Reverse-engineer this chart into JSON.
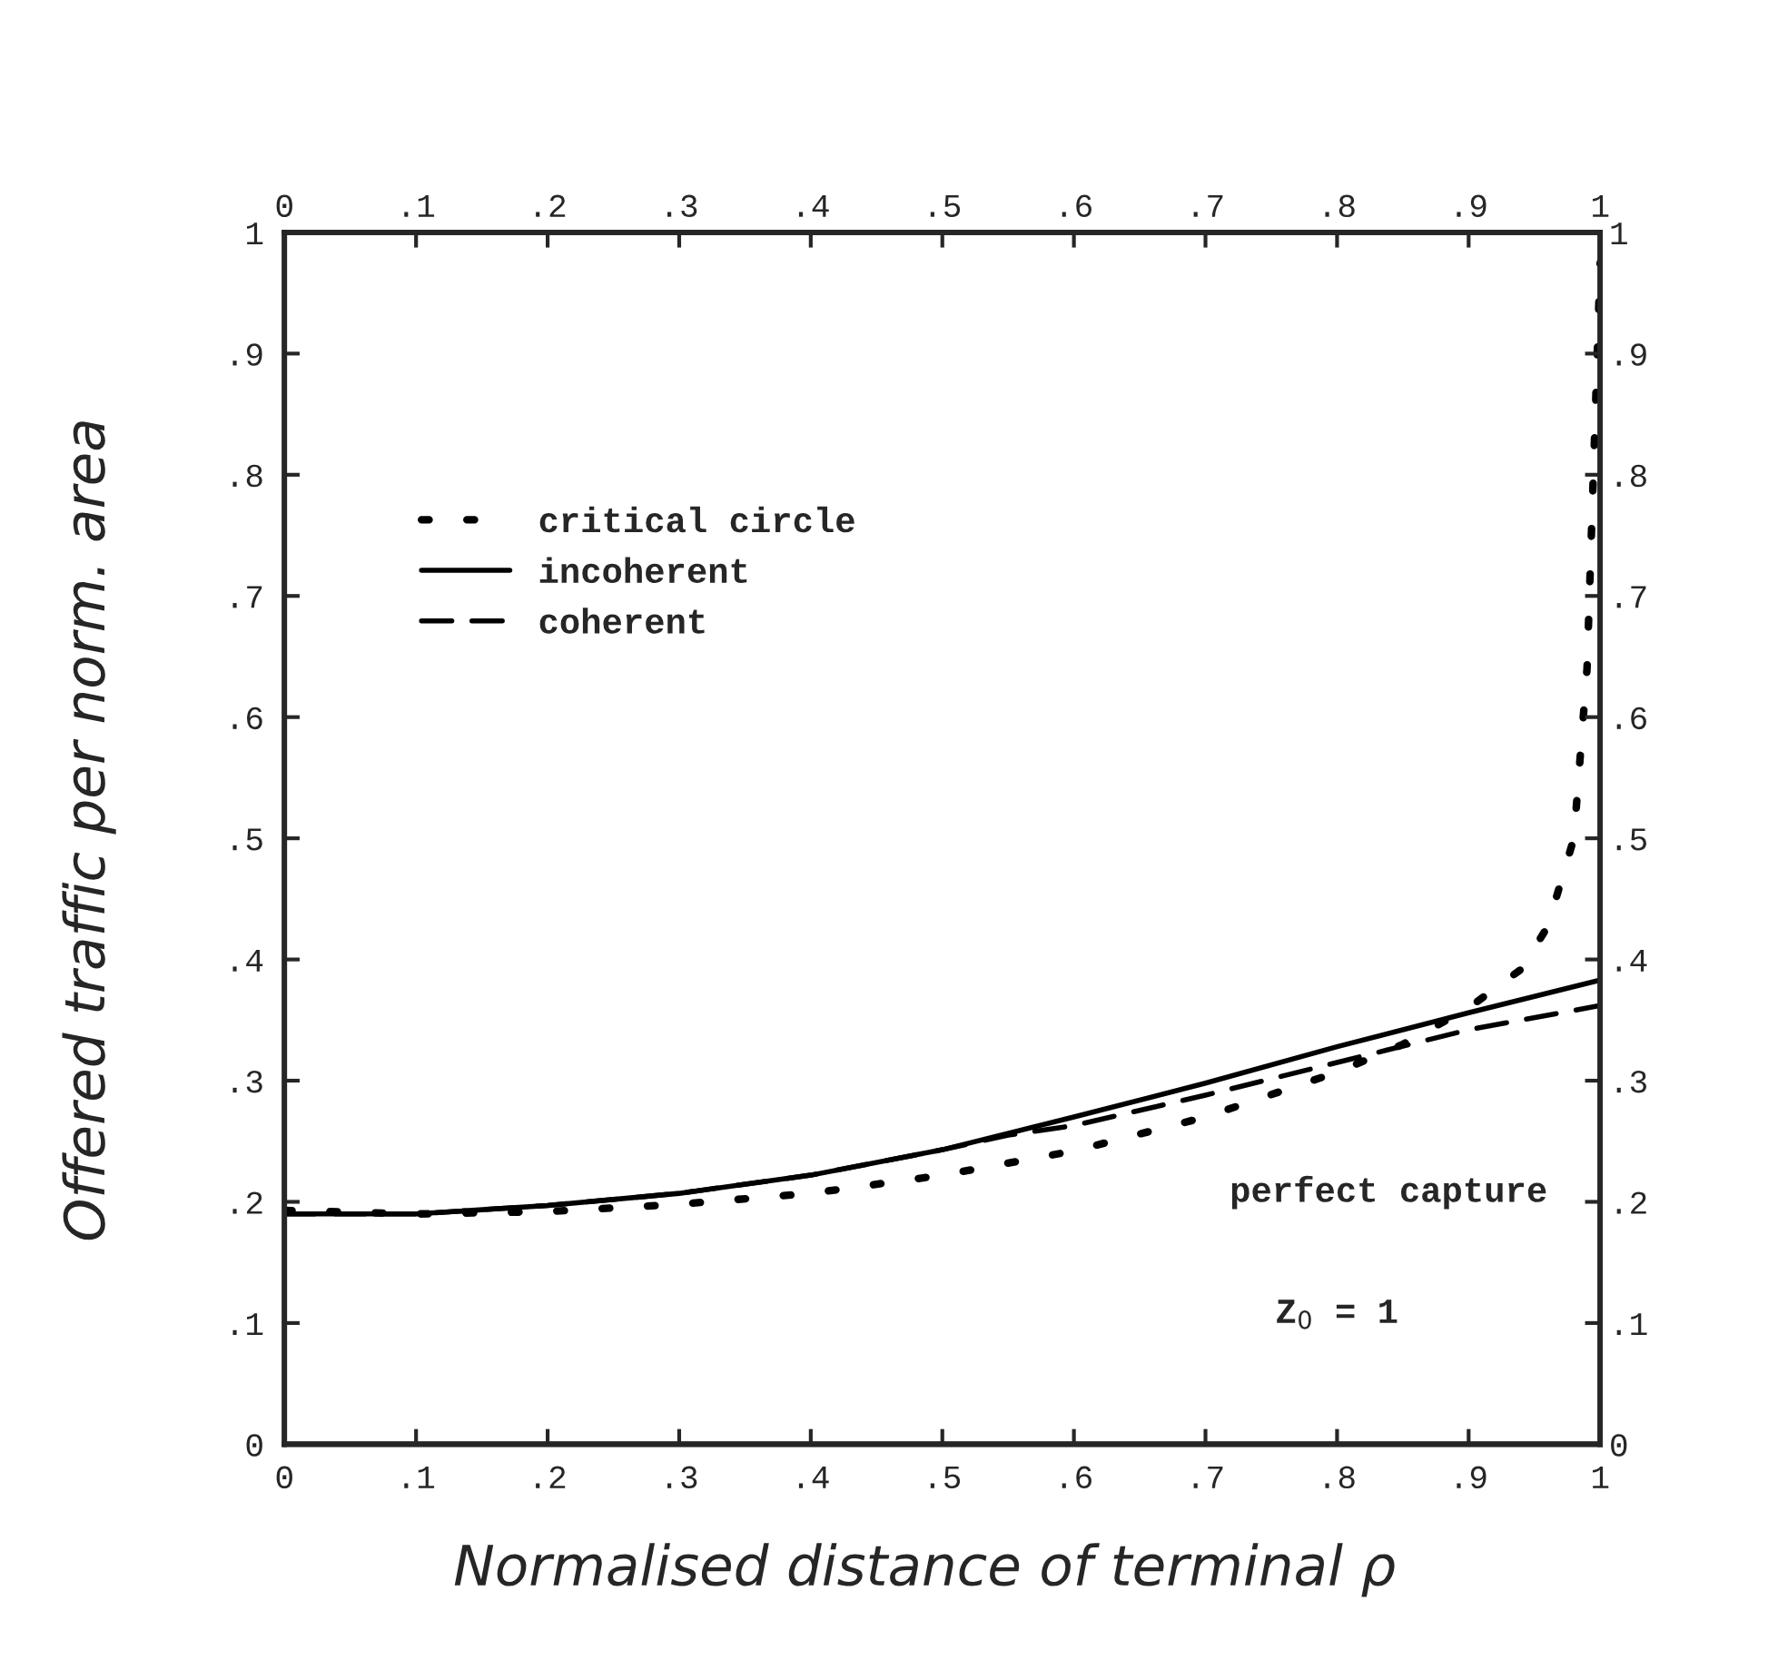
{
  "chart_data": {
    "type": "line",
    "xlabel": "Normalised distance of terminal ρ",
    "ylabel": "Offered traffic per norm. area",
    "annotations": [
      "perfect capture",
      "Z$_{0}$ = 1"
    ],
    "series": [
      {
        "name": "critical circle",
        "color": "#000000",
        "line_style": "dotted",
        "x": [
          0,
          0.1,
          0.2,
          0.3,
          0.4,
          0.5,
          0.6,
          0.7,
          0.8,
          0.85,
          0.9,
          0.94,
          0.96,
          0.98,
          0.99,
          1
        ],
        "values": [
          0.193,
          0.19,
          0.192,
          0.198,
          0.207,
          0.222,
          0.242,
          0.27,
          0.307,
          0.33,
          0.36,
          0.392,
          0.427,
          0.5,
          0.64,
          0.975
        ]
      },
      {
        "name": "incoherent",
        "color": "#000000",
        "line_style": "solid",
        "x": [
          0,
          0.1,
          0.2,
          0.3,
          0.4,
          0.5,
          0.6,
          0.7,
          0.8,
          0.9,
          1
        ],
        "values": [
          0.19,
          0.19,
          0.197,
          0.207,
          0.222,
          0.243,
          0.27,
          0.298,
          0.328,
          0.356,
          0.383
        ]
      },
      {
        "name": "coherent",
        "color": "#000000",
        "line_style": "dashed",
        "x": [
          0,
          0.1,
          0.2,
          0.3,
          0.4,
          0.5,
          0.55,
          0.6,
          0.7,
          0.8,
          0.9,
          1
        ],
        "values": [
          0.19,
          0.19,
          0.197,
          0.207,
          0.222,
          0.243,
          0.255,
          0.263,
          0.288,
          0.315,
          0.342,
          0.362
        ]
      }
    ],
    "xlim": [
      0,
      1
    ],
    "xticks": [
      0,
      {
        "value": 0.1,
        "label": ".1"
      },
      {
        "value": 0.2,
        "label": ".2"
      },
      {
        "value": 0.3,
        "label": ".3"
      },
      {
        "value": 0.4,
        "label": ".4"
      },
      {
        "value": 0.5,
        "label": ".5"
      },
      {
        "value": 0.6,
        "label": ".6"
      },
      {
        "value": 0.7,
        "label": ".7"
      },
      {
        "value": 0.8,
        "label": ".8"
      },
      {
        "value": 0.9,
        "label": ".9"
      },
      1
    ],
    "x2lim": [
      0,
      1
    ],
    "x2ticks": [
      0,
      {
        "value": 0.1,
        "label": ".1"
      },
      {
        "value": 0.2,
        "label": ".2"
      },
      {
        "value": 0.3,
        "label": ".3"
      },
      {
        "value": 0.4,
        "label": ".4"
      },
      {
        "value": 0.5,
        "label": ".5"
      },
      {
        "value": 0.6,
        "label": ".6"
      },
      {
        "value": 0.7,
        "label": ".7"
      },
      {
        "value": 0.8,
        "label": ".8"
      },
      {
        "value": 0.9,
        "label": ".9"
      },
      1
    ],
    "ylim": [
      0,
      1
    ],
    "yticks": [
      0,
      {
        "value": 0.1,
        "label": ".1"
      },
      {
        "value": 0.2,
        "label": ".2"
      },
      {
        "value": 0.3,
        "label": ".3"
      },
      {
        "value": 0.4,
        "label": ".4"
      },
      {
        "value": 0.5,
        "label": ".5"
      },
      {
        "value": 0.6,
        "label": ".6"
      },
      {
        "value": 0.7,
        "label": ".7"
      },
      {
        "value": 0.8,
        "label": ".8"
      },
      {
        "value": 0.9,
        "label": ".9"
      },
      1
    ],
    "y2lim": [
      0,
      1
    ],
    "y2ticks": [
      0,
      {
        "value": 0.1,
        "label": ".1"
      },
      {
        "value": 0.2,
        "label": ".2"
      },
      {
        "value": 0.3,
        "label": ".3"
      },
      {
        "value": 0.4,
        "label": ".4"
      },
      {
        "value": 0.5,
        "label": ".5"
      },
      {
        "value": 0.6,
        "label": ".6"
      },
      {
        "value": 0.7,
        "label": ".7"
      },
      {
        "value": 0.8,
        "label": ".8"
      },
      {
        "value": 0.9,
        "label": ".9"
      },
      1
    ],
    "legend": "upper left",
    "grid": false
  }
}
